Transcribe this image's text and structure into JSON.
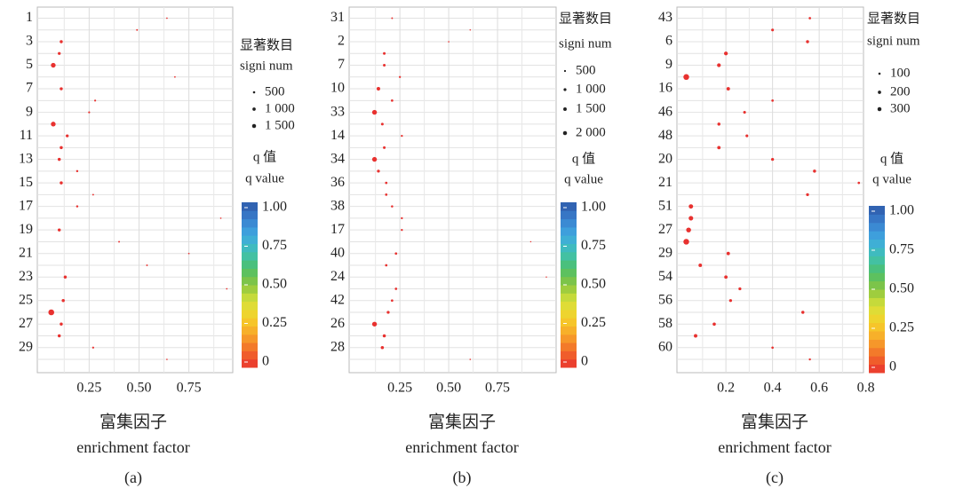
{
  "chart_data": [
    {
      "type": "scatter",
      "panel_label": "(a)",
      "xlabel": "富集因子",
      "xlabel_en": "enrichment factor",
      "categories": [
        "1",
        null,
        "3",
        null,
        "5",
        null,
        "7",
        null,
        "9",
        null,
        "11",
        null,
        "13",
        null,
        "15",
        null,
        "17",
        null,
        "19",
        null,
        "21",
        null,
        "23",
        null,
        "25",
        null,
        "27",
        null,
        "29",
        null
      ],
      "x": [
        0.64,
        0.49,
        0.11,
        0.1,
        0.07,
        0.68,
        0.11,
        0.28,
        0.25,
        0.07,
        0.14,
        0.11,
        0.1,
        0.19,
        0.11,
        0.27,
        0.19,
        0.91,
        0.1,
        0.4,
        0.75,
        0.54,
        0.13,
        0.94,
        0.12,
        0.06,
        0.11,
        0.1,
        0.27,
        0.64
      ],
      "size": [
        120,
        150,
        500,
        450,
        1200,
        130,
        500,
        200,
        200,
        1200,
        450,
        500,
        500,
        250,
        500,
        150,
        250,
        120,
        500,
        150,
        120,
        150,
        500,
        120,
        500,
        1800,
        500,
        500,
        200,
        120
      ],
      "q": [
        0,
        0,
        0,
        0,
        0,
        0,
        0,
        0,
        0,
        0,
        0,
        0,
        0,
        0,
        0,
        0,
        0,
        0,
        0,
        0,
        0,
        0,
        0,
        0,
        0,
        0,
        0,
        0,
        0,
        0
      ],
      "xlim": [
        -0.01,
        0.97
      ],
      "xticks": [
        0.25,
        {
          "value": 0.5,
          "label": "0.50"
        },
        0.75
      ],
      "grid": true,
      "size_title": "显著数目",
      "size_title_en": "signi num",
      "size_legend": [
        500,
        {
          "value": 1000,
          "label": "1 000"
        },
        {
          "value": 1500,
          "label": "1 500"
        }
      ],
      "color_title": "q 值",
      "color_title_en": "q value",
      "colorbar_lim": [
        0,
        1
      ],
      "colorbar_ticks": [
        0,
        0.25,
        {
          "value": 0.5,
          "label": "0.50"
        },
        0.75,
        {
          "value": 1,
          "label": "1.00"
        }
      ],
      "colorscale": [
        "#e8312f",
        "#f26b2a",
        "#f7a52a",
        "#f5d02a",
        "#d8e03a",
        "#8cc63f",
        "#4dbf6a",
        "#3fc1b4",
        "#3fa9e0",
        "#3a7fcf",
        "#2e5aa8"
      ]
    },
    {
      "type": "scatter",
      "panel_label": "(b)",
      "xlabel": "富集因子",
      "xlabel_en": "enrichment factor",
      "categories": [
        "31",
        null,
        "2",
        null,
        "7",
        null,
        "10",
        null,
        "33",
        null,
        "14",
        null,
        "34",
        null,
        "36",
        null,
        "38",
        null,
        "17",
        null,
        "40",
        null,
        "24",
        null,
        "42",
        null,
        "26",
        null,
        "28",
        null
      ],
      "x": [
        0.21,
        0.61,
        0.5,
        0.17,
        0.17,
        0.25,
        0.14,
        0.21,
        0.12,
        0.16,
        0.26,
        0.17,
        0.12,
        0.14,
        0.18,
        0.18,
        0.21,
        0.26,
        0.26,
        0.92,
        0.23,
        0.18,
        1.0,
        0.23,
        0.21,
        0.19,
        0.12,
        0.17,
        0.16,
        0.61
      ],
      "size": [
        200,
        120,
        150,
        500,
        500,
        300,
        900,
        400,
        1600,
        500,
        300,
        500,
        1600,
        600,
        400,
        400,
        350,
        300,
        300,
        120,
        400,
        400,
        120,
        400,
        400,
        600,
        1600,
        700,
        700,
        150
      ],
      "q": [
        0,
        0,
        0,
        0,
        0,
        0,
        0,
        0,
        0,
        0,
        0,
        0,
        0,
        0,
        0,
        0,
        0,
        0,
        0,
        0,
        0,
        0,
        0,
        0,
        0,
        0,
        0,
        0,
        0,
        0
      ],
      "xlim": [
        -0.01,
        1.05
      ],
      "xticks": [
        0.25,
        {
          "value": 0.5,
          "label": "0.50"
        },
        0.75
      ],
      "grid": true,
      "size_title": "显著数目",
      "size_title_en": "signi num",
      "size_legend": [
        500,
        {
          "value": 1000,
          "label": "1 000"
        },
        {
          "value": 1500,
          "label": "1 500"
        },
        {
          "value": 2000,
          "label": "2 000"
        }
      ],
      "color_title": "q 值",
      "color_title_en": "q value",
      "colorbar_lim": [
        0,
        1
      ],
      "colorbar_ticks": [
        0,
        0.25,
        {
          "value": 0.5,
          "label": "0.50"
        },
        0.75,
        {
          "value": 1,
          "label": "1.00"
        }
      ],
      "colorscale": [
        "#e8312f",
        "#f26b2a",
        "#f7a52a",
        "#f5d02a",
        "#d8e03a",
        "#8cc63f",
        "#4dbf6a",
        "#3fc1b4",
        "#3fa9e0",
        "#3a7fcf",
        "#2e5aa8"
      ]
    },
    {
      "type": "scatter",
      "panel_label": "(c)",
      "xlabel": "富集因子",
      "xlabel_en": "enrichment factor",
      "categories": [
        "43",
        null,
        "6",
        null,
        "9",
        null,
        "16",
        null,
        "46",
        null,
        "48",
        null,
        "20",
        null,
        "21",
        null,
        "51",
        null,
        "27",
        null,
        "29",
        null,
        "54",
        null,
        "56",
        null,
        "58",
        null,
        "60",
        null
      ],
      "x": [
        0.56,
        0.4,
        0.55,
        0.2,
        0.17,
        0.03,
        0.21,
        0.4,
        0.28,
        0.17,
        0.29,
        0.17,
        0.4,
        0.58,
        0.77,
        0.55,
        0.05,
        0.05,
        0.04,
        0.03,
        0.21,
        0.09,
        0.2,
        0.26,
        0.22,
        0.53,
        0.15,
        0.07,
        0.4,
        0.56
      ],
      "size": [
        60,
        80,
        100,
        150,
        150,
        350,
        130,
        60,
        80,
        100,
        80,
        120,
        90,
        100,
        60,
        90,
        200,
        220,
        250,
        350,
        120,
        130,
        120,
        90,
        90,
        100,
        110,
        130,
        60,
        50
      ],
      "q": [
        0,
        0,
        0,
        0,
        0,
        0,
        0,
        0,
        0,
        0,
        0,
        0,
        0,
        0,
        0,
        0,
        0,
        0,
        0,
        0,
        0,
        0,
        0,
        0,
        0,
        0,
        0,
        0,
        0,
        0
      ],
      "xlim": [
        -0.01,
        0.79
      ],
      "xticks": [
        0.2,
        0.4,
        0.6,
        0.8
      ],
      "grid": true,
      "size_title": "显著数目",
      "size_title_en": "signi num",
      "size_legend": [
        100,
        200,
        300
      ],
      "color_title": "q 值",
      "color_title_en": "q value",
      "colorbar_lim": [
        0,
        1
      ],
      "colorbar_ticks": [
        0,
        0.25,
        {
          "value": 0.5,
          "label": "0.50"
        },
        0.75,
        {
          "value": 1,
          "label": "1.00"
        }
      ],
      "colorscale": [
        "#e8312f",
        "#f26b2a",
        "#f7a52a",
        "#f5d02a",
        "#d8e03a",
        "#8cc63f",
        "#4dbf6a",
        "#3fc1b4",
        "#3fa9e0",
        "#3a7fcf",
        "#2e5aa8"
      ]
    }
  ]
}
